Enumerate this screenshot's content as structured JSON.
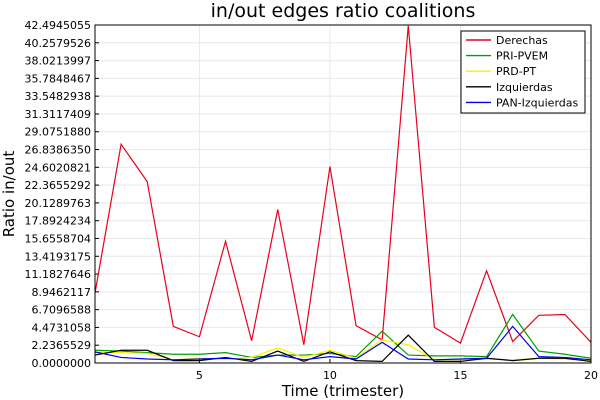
{
  "chart_data": {
    "type": "line",
    "title": "in/out edges ratio coalitions",
    "xlabel": "Time (trimester)",
    "ylabel": "Ratio in/out",
    "xlim": [
      1,
      20
    ],
    "ylim": [
      0,
      42.4945055
    ],
    "x_ticks": [
      5,
      10,
      15,
      20
    ],
    "y_ticks": [
      "0.0000000",
      "2.2365529",
      "4.4731058",
      "6.7096588",
      "8.9462117",
      "11.1827646",
      "13.4193175",
      "15.6558704",
      "17.8924234",
      "20.1289763",
      "22.3655292",
      "24.6020821",
      "26.8386350",
      "29.0751880",
      "31.3117409",
      "33.5482938",
      "35.7848467",
      "38.0213997",
      "40.2579526",
      "42.4945055"
    ],
    "grid": true,
    "legend_position": "top-right",
    "x": [
      1,
      2,
      3,
      4,
      5,
      6,
      7,
      8,
      9,
      10,
      11,
      12,
      13,
      14,
      15,
      16,
      17,
      18,
      19,
      20
    ],
    "series": [
      {
        "name": "Derechas",
        "color": "#e8001e",
        "values": [
          8.8,
          27.5,
          22.8,
          4.6,
          3.3,
          15.3,
          2.8,
          19.3,
          2.3,
          24.7,
          4.7,
          2.9,
          42.4,
          4.5,
          2.5,
          11.6,
          2.7,
          6.0,
          6.1,
          2.6
        ]
      },
      {
        "name": "PRI-PVEM",
        "color": "#00a000",
        "values": [
          1.6,
          1.5,
          1.3,
          1.1,
          1.1,
          1.3,
          0.7,
          1.0,
          1.0,
          1.2,
          0.8,
          4.0,
          1.0,
          0.9,
          0.9,
          0.8,
          6.1,
          1.5,
          1.1,
          0.6
        ]
      },
      {
        "name": "PRD-PT",
        "color": "#ffee00",
        "values": [
          1.3,
          1.3,
          1.2,
          0.4,
          0.6,
          0.5,
          0.7,
          1.9,
          0.7,
          1.6,
          0.6,
          2.9,
          2.3,
          0.4,
          0.4,
          0.5,
          0.4,
          0.6,
          0.5,
          0.3
        ]
      },
      {
        "name": "Izquierdas",
        "color": "#000000",
        "values": [
          1.0,
          1.6,
          1.6,
          0.3,
          0.3,
          0.7,
          0.2,
          1.5,
          0.2,
          1.4,
          0.3,
          0.2,
          3.5,
          0.2,
          0.2,
          0.6,
          0.3,
          0.6,
          0.6,
          0.2
        ]
      },
      {
        "name": "PAN-Izquierdas",
        "color": "#0000ee",
        "values": [
          1.4,
          0.7,
          0.5,
          0.4,
          0.5,
          0.6,
          0.4,
          1.0,
          0.4,
          0.8,
          0.5,
          2.6,
          0.5,
          0.4,
          0.5,
          0.6,
          4.6,
          0.8,
          0.7,
          0.4
        ]
      }
    ]
  }
}
